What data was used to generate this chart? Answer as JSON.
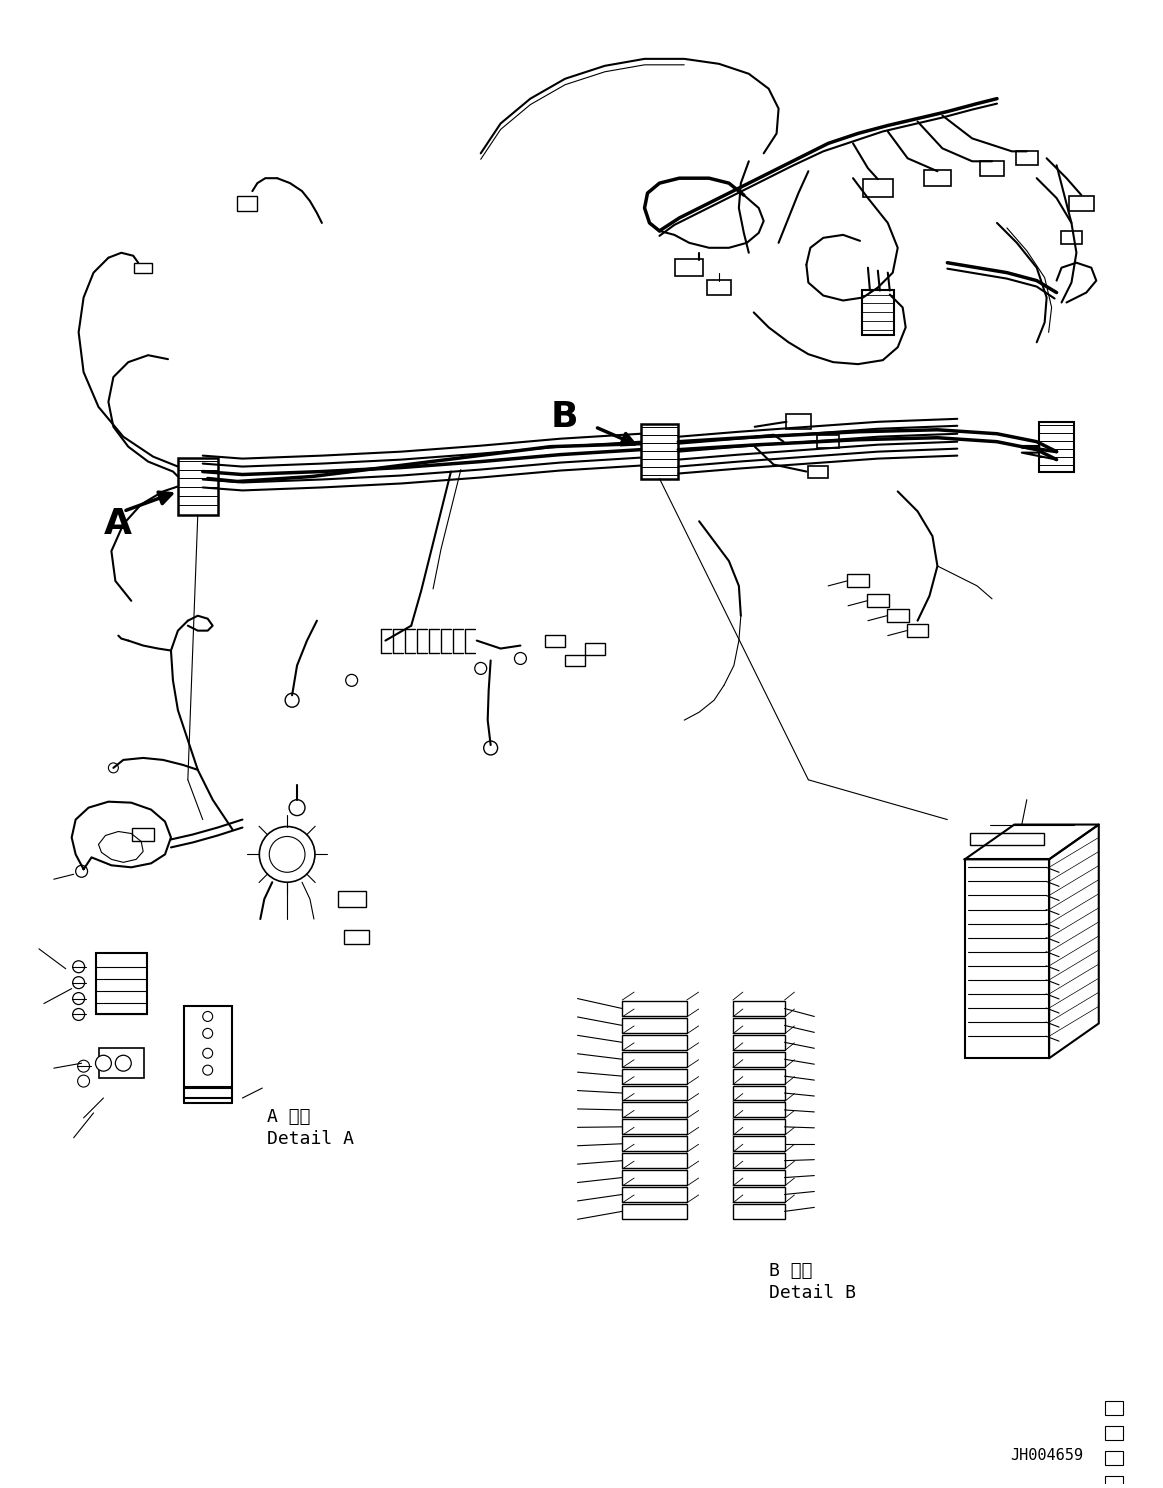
{
  "background_color": "#ffffff",
  "line_color": "#000000",
  "fig_width": 11.63,
  "fig_height": 14.88,
  "dpi": 100,
  "label_A": "A",
  "label_B": "B",
  "detail_A_jp": "A 詳細",
  "detail_A_en": "Detail A",
  "detail_B_jp": "B 詳細",
  "detail_B_en": "Detail B",
  "part_number": "JH004659",
  "lw_main": 1.5,
  "lw_thin": 0.8,
  "lw_thick": 2.5,
  "lw_ultra": 3.5
}
